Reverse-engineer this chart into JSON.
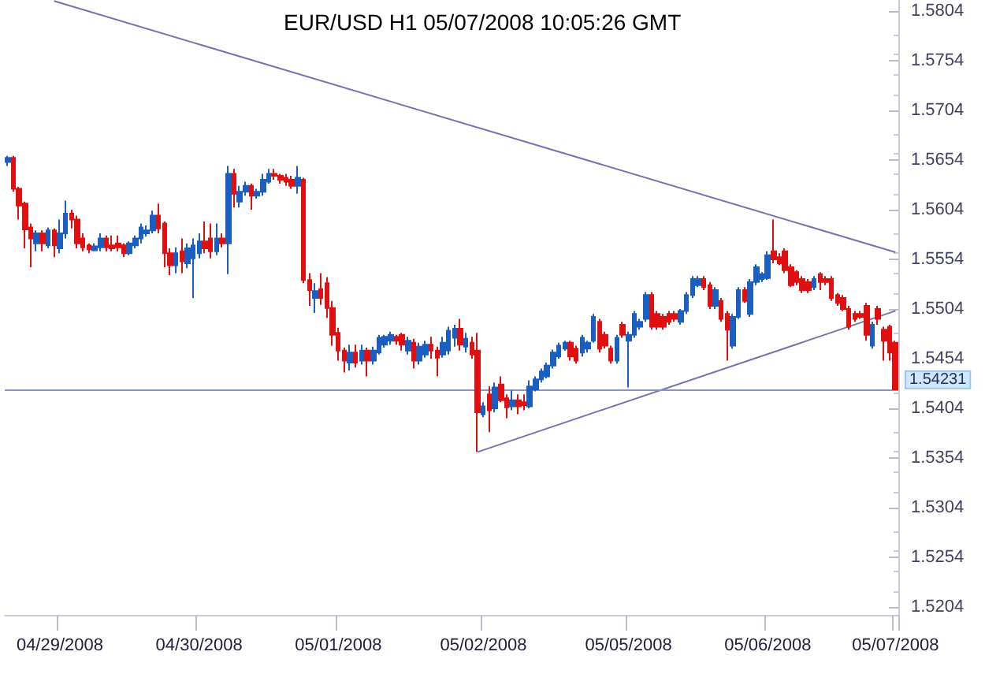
{
  "chart_data": {
    "type": "candlestick",
    "title": "EUR/USD H1 05/07/2008 10:05:26 GMT",
    "categories": [
      null,
      null,
      null,
      null,
      null,
      null,
      null,
      null,
      null,
      "04/29/2008",
      null,
      null,
      null,
      null,
      null,
      null,
      null,
      null,
      null,
      null,
      null,
      null,
      null,
      null,
      null,
      null,
      null,
      null,
      null,
      null,
      null,
      null,
      null,
      "04/30/2008",
      null,
      null,
      null,
      null,
      null,
      null,
      null,
      null,
      null,
      null,
      null,
      null,
      null,
      null,
      null,
      null,
      null,
      null,
      null,
      null,
      null,
      null,
      null,
      "05/01/2008",
      null,
      null,
      null,
      null,
      null,
      null,
      null,
      null,
      null,
      null,
      null,
      null,
      null,
      null,
      null,
      null,
      null,
      null,
      null,
      null,
      null,
      null,
      null,
      null,
      "05/02/2008",
      null,
      null,
      null,
      null,
      null,
      null,
      null,
      null,
      null,
      null,
      null,
      null,
      null,
      null,
      null,
      null,
      null,
      null,
      null,
      null,
      null,
      null,
      null,
      null,
      "05/05/2008",
      null,
      null,
      null,
      null,
      null,
      null,
      null,
      null,
      null,
      null,
      null,
      null,
      null,
      null,
      null,
      null,
      null,
      null,
      null,
      null,
      null,
      null,
      null,
      "05/06/2008",
      null,
      null,
      null,
      null,
      null,
      null,
      null,
      null,
      null,
      null,
      null,
      null,
      null,
      null,
      null,
      null,
      null,
      null,
      null,
      null,
      null,
      "05/07/2008"
    ],
    "colors": [
      "#1a5fc0",
      "#e01010",
      "#e01010",
      "#e01010",
      "#e01010",
      "#1a5fc0",
      "#e01010",
      "#1a5fc0",
      "#e01010",
      "#1a5fc0",
      "#1a5fc0",
      "#e01010",
      "#e01010",
      "#e01010",
      "#e01010",
      "#1a5fc0",
      "#1a5fc0",
      "#e01010",
      "#e01010",
      "#e01010",
      "#e01010",
      "#1a5fc0",
      "#1a5fc0",
      "#1a5fc0",
      "#1a5fc0",
      "#1a5fc0",
      "#e01010",
      "#e01010",
      "#e01010",
      "#1a5fc0",
      "#e01010",
      "#1a5fc0",
      "#1a5fc0",
      "#1a5fc0",
      "#e01010",
      "#e01010",
      "#1a5fc0",
      "#e01010",
      "#1a5fc0",
      "#e01010",
      "#1a5fc0",
      "#1a5fc0",
      "#e01010",
      "#1a5fc0",
      "#1a5fc0",
      "#1a5fc0",
      "#e01010",
      "#e01010",
      "#e01010",
      "#e01010",
      "#1a5fc0",
      "#e01010",
      "#e01010",
      "#1a5fc0",
      "#e01010",
      "#e01010",
      "#e01010",
      "#e01010",
      "#e01010",
      "#1a5fc0",
      "#e01010",
      "#1a5fc0",
      "#e01010",
      "#1a5fc0",
      "#1a5fc0",
      "#1a5fc0",
      "#1a5fc0",
      "#e01010",
      "#e01010",
      "#1a5fc0",
      "#e01010",
      "#1a5fc0",
      "#1a5fc0",
      "#e01010",
      "#e01010",
      "#1a5fc0",
      "#1a5fc0",
      "#1a5fc0",
      "#e01010",
      "#1a5fc0",
      "#e01010",
      "#e01010",
      "#1a5fc0",
      "#e01010",
      "#1a5fc0",
      "#e01010",
      "#e01010",
      "#1a5fc0",
      "#e01010",
      "#e01010",
      "#1a5fc0",
      "#1a5fc0",
      "#1a5fc0",
      "#1a5fc0",
      "#1a5fc0",
      "#1a5fc0",
      "#1a5fc0",
      "#e01010",
      "#e01010",
      "#1a5fc0",
      "#1a5fc0",
      "#1a5fc0",
      "#e01010",
      "#e01010",
      "#e01010",
      "#1a5fc0",
      "#e01010",
      "#1a5fc0",
      "#1a5fc0",
      "#1a5fc0",
      "#1a5fc0",
      "#e01010",
      "#e01010",
      "#e01010",
      "#e01010",
      "#e01010",
      "#1a5fc0",
      "#1a5fc0",
      "#1a5fc0",
      "#1a5fc0",
      "#e01010",
      "#e01010",
      "#1a5fc0",
      "#e01010",
      "#e01010",
      "#1a5fc0",
      "#1a5fc0",
      "#e01010",
      "#1a5fc0",
      "#1a5fc0",
      "#1a5fc0",
      "#1a5fc0",
      "#e01010",
      "#e01010",
      "#e01010",
      "#e01010",
      "#e01010",
      "#e01010",
      "#e01010",
      "#1a5fc0",
      "#e01010",
      "#e01010",
      "#e01010",
      "#e01010",
      "#e01010",
      "#e01010",
      "#e01010",
      "#e01010",
      "#e01010",
      "#1a5fc0",
      "#e01010",
      "#e01010",
      "#e01010",
      "#e01010"
    ],
    "ohlc": [
      [
        1.5652,
        1.5658,
        1.5648,
        1.5656
      ],
      [
        1.5656,
        1.5658,
        1.5622,
        1.5625
      ],
      [
        1.5625,
        1.5627,
        1.5594,
        1.5608
      ],
      [
        1.561,
        1.5612,
        1.5565,
        1.5584
      ],
      [
        1.5586,
        1.559,
        1.5546,
        1.5575
      ],
      [
        1.557,
        1.5583,
        1.5562,
        1.558
      ],
      [
        1.558,
        1.5583,
        1.5562,
        1.557
      ],
      [
        1.5568,
        1.5586,
        1.5565,
        1.5583
      ],
      [
        1.5583,
        1.5585,
        1.5556,
        1.5568
      ],
      [
        1.5565,
        1.5594,
        1.556,
        1.558
      ],
      [
        1.558,
        1.5613,
        1.5575,
        1.56
      ],
      [
        1.56,
        1.5604,
        1.5585,
        1.5594
      ],
      [
        1.5594,
        1.5598,
        1.5565,
        1.557
      ],
      [
        1.5575,
        1.558,
        1.5562,
        1.5566
      ],
      [
        1.5568,
        1.557,
        1.556,
        1.5564
      ],
      [
        1.5563,
        1.557,
        1.5562,
        1.5567
      ],
      [
        1.5566,
        1.558,
        1.5562,
        1.5575
      ],
      [
        1.5575,
        1.5578,
        1.5562,
        1.5566
      ],
      [
        1.5568,
        1.5578,
        1.5562,
        1.5565
      ],
      [
        1.557,
        1.5578,
        1.5562,
        1.5566
      ],
      [
        1.5568,
        1.557,
        1.5556,
        1.556
      ],
      [
        1.556,
        1.5572,
        1.5558,
        1.557
      ],
      [
        1.5568,
        1.5578,
        1.5565,
        1.5575
      ],
      [
        1.5575,
        1.559,
        1.557,
        1.5586
      ],
      [
        1.558,
        1.5588,
        1.5577,
        1.5583
      ],
      [
        1.5583,
        1.5603,
        1.558,
        1.5598
      ],
      [
        1.5598,
        1.561,
        1.558,
        1.5585
      ],
      [
        1.559,
        1.5592,
        1.5546,
        1.556
      ],
      [
        1.556,
        1.5565,
        1.5538,
        1.5548
      ],
      [
        1.5548,
        1.5566,
        1.554,
        1.556
      ],
      [
        1.5562,
        1.5575,
        1.554,
        1.5552
      ],
      [
        1.555,
        1.557,
        1.5545,
        1.5565
      ],
      [
        1.5555,
        1.5575,
        1.5515,
        1.5568
      ],
      [
        1.556,
        1.558,
        1.5555,
        1.5572
      ],
      [
        1.5572,
        1.5592,
        1.556,
        1.5565
      ],
      [
        1.5575,
        1.559,
        1.5555,
        1.5562
      ],
      [
        1.5562,
        1.559,
        1.5558,
        1.5575
      ],
      [
        1.5575,
        1.558,
        1.5566,
        1.557
      ],
      [
        1.557,
        1.5648,
        1.5539,
        1.564
      ],
      [
        1.564,
        1.5645,
        1.5606,
        1.562
      ],
      [
        1.5612,
        1.5628,
        1.5606,
        1.5622
      ],
      [
        1.5622,
        1.5632,
        1.5618,
        1.5628
      ],
      [
        1.5628,
        1.563,
        1.5604,
        1.5618
      ],
      [
        1.5618,
        1.5625,
        1.5615,
        1.5622
      ],
      [
        1.5622,
        1.564,
        1.5618,
        1.5634
      ],
      [
        1.5632,
        1.5645,
        1.563,
        1.564
      ],
      [
        1.564,
        1.5645,
        1.5634,
        1.5638
      ],
      [
        1.5638,
        1.564,
        1.563,
        1.5634
      ],
      [
        1.5636,
        1.564,
        1.5628,
        1.5632
      ],
      [
        1.5634,
        1.5638,
        1.5625,
        1.5628
      ],
      [
        1.5628,
        1.5648,
        1.562,
        1.5636
      ],
      [
        1.5634,
        1.5636,
        1.553,
        1.5533
      ],
      [
        1.5533,
        1.554,
        1.5507,
        1.5523
      ],
      [
        1.5515,
        1.553,
        1.55,
        1.5522
      ],
      [
        1.5524,
        1.554,
        1.5508,
        1.5515
      ],
      [
        1.553,
        1.5536,
        1.5495,
        1.5505
      ],
      [
        1.5505,
        1.5512,
        1.5467,
        1.5478
      ],
      [
        1.548,
        1.5485,
        1.5452,
        1.5462
      ],
      [
        1.5462,
        1.5465,
        1.544,
        1.5452
      ],
      [
        1.545,
        1.5468,
        1.5442,
        1.546
      ],
      [
        1.546,
        1.5468,
        1.5445,
        1.545
      ],
      [
        1.5452,
        1.5468,
        1.5448,
        1.5462
      ],
      [
        1.5462,
        1.5465,
        1.5436,
        1.5452
      ],
      [
        1.5452,
        1.5466,
        1.5448,
        1.5462
      ],
      [
        1.546,
        1.5478,
        1.5458,
        1.5475
      ],
      [
        1.5468,
        1.5478,
        1.5465,
        1.5476
      ],
      [
        1.5472,
        1.5481,
        1.5468,
        1.5478
      ],
      [
        1.5476,
        1.5478,
        1.5468,
        1.5472
      ],
      [
        1.5478,
        1.548,
        1.5462,
        1.5468
      ],
      [
        1.5462,
        1.5476,
        1.5458,
        1.5472
      ],
      [
        1.547,
        1.5474,
        1.5444,
        1.5452
      ],
      [
        1.5452,
        1.547,
        1.5448,
        1.5466
      ],
      [
        1.5458,
        1.5472,
        1.5455,
        1.5468
      ],
      [
        1.5468,
        1.5476,
        1.5454,
        1.5462
      ],
      [
        1.5462,
        1.5466,
        1.5436,
        1.5455
      ],
      [
        1.5458,
        1.5476,
        1.5455,
        1.547
      ],
      [
        1.5462,
        1.5486,
        1.5458,
        1.5482
      ],
      [
        1.5475,
        1.5488,
        1.5466,
        1.5484
      ],
      [
        1.5484,
        1.5494,
        1.5462,
        1.5468
      ],
      [
        1.5466,
        1.548,
        1.546,
        1.5474
      ],
      [
        1.547,
        1.5476,
        1.5454,
        1.5458
      ],
      [
        1.5462,
        1.548,
        1.536,
        1.54
      ],
      [
        1.5398,
        1.541,
        1.5395,
        1.5406
      ],
      [
        1.5418,
        1.5426,
        1.538,
        1.5402
      ],
      [
        1.5404,
        1.543,
        1.54,
        1.5425
      ],
      [
        1.5428,
        1.5436,
        1.541,
        1.5412
      ],
      [
        1.5414,
        1.5418,
        1.5394,
        1.5405
      ],
      [
        1.5406,
        1.5422,
        1.5402,
        1.5412
      ],
      [
        1.5412,
        1.5418,
        1.5398,
        1.5406
      ],
      [
        1.541,
        1.5418,
        1.5402,
        1.5407
      ],
      [
        1.5406,
        1.5432,
        1.5404,
        1.5426
      ],
      [
        1.5423,
        1.5436,
        1.5421,
        1.5433
      ],
      [
        1.5433,
        1.5444,
        1.543,
        1.5441
      ],
      [
        1.5436,
        1.545,
        1.5434,
        1.5447
      ],
      [
        1.5447,
        1.5463,
        1.5444,
        1.546
      ],
      [
        1.5456,
        1.547,
        1.5454,
        1.5467
      ],
      [
        1.5464,
        1.5472,
        1.5462,
        1.547
      ],
      [
        1.547,
        1.5472,
        1.5452,
        1.5456
      ],
      [
        1.5464,
        1.5467,
        1.5449,
        1.5452
      ],
      [
        1.546,
        1.5478,
        1.5456,
        1.5475
      ],
      [
        1.5464,
        1.5472,
        1.546,
        1.547
      ],
      [
        1.5472,
        1.5499,
        1.547,
        1.5496
      ],
      [
        1.5491,
        1.5494,
        1.546,
        1.5464
      ],
      [
        1.5478,
        1.5481,
        1.5464,
        1.5467
      ],
      [
        1.5464,
        1.5467,
        1.5449,
        1.5452
      ],
      [
        1.5452,
        1.5478,
        1.5449,
        1.5475
      ],
      [
        1.5488,
        1.5491,
        1.5475,
        1.5478
      ],
      [
        1.5472,
        1.5481,
        1.5425,
        1.5478
      ],
      [
        1.5478,
        1.5502,
        1.5475,
        1.5499
      ],
      [
        1.5486,
        1.5494,
        1.5483,
        1.5491
      ],
      [
        1.5494,
        1.5521,
        1.5491,
        1.5518
      ],
      [
        1.5518,
        1.5521,
        1.5483,
        1.5486
      ],
      [
        1.5499,
        1.5502,
        1.5483,
        1.5486
      ],
      [
        1.5496,
        1.5499,
        1.5483,
        1.5486
      ],
      [
        1.5499,
        1.5502,
        1.5488,
        1.5491
      ],
      [
        1.5499,
        1.5502,
        1.5491,
        1.5494
      ],
      [
        1.5491,
        1.5504,
        1.5488,
        1.5502
      ],
      [
        1.5502,
        1.5521,
        1.5499,
        1.5518
      ],
      [
        1.5518,
        1.5537,
        1.5515,
        1.5534
      ],
      [
        1.5528,
        1.5537,
        1.5526,
        1.5534
      ],
      [
        1.5534,
        1.5537,
        1.5523,
        1.5526
      ],
      [
        1.5528,
        1.5531,
        1.5504,
        1.5507
      ],
      [
        1.5507,
        1.5526,
        1.5504,
        1.5523
      ],
      [
        1.5512,
        1.5515,
        1.5491,
        1.5494
      ],
      [
        1.5499,
        1.5502,
        1.5452,
        1.5483
      ],
      [
        1.5467,
        1.5499,
        1.5464,
        1.5496
      ],
      [
        1.5496,
        1.5526,
        1.5494,
        1.5523
      ],
      [
        1.5523,
        1.5526,
        1.551,
        1.5512
      ],
      [
        1.5499,
        1.5534,
        1.5496,
        1.5531
      ],
      [
        1.5531,
        1.5549,
        1.5528,
        1.5546
      ],
      [
        1.5534,
        1.5541,
        1.5531,
        1.5539
      ],
      [
        1.5535,
        1.5562,
        1.5533,
        1.5558
      ],
      [
        1.5562,
        1.5594,
        1.555,
        1.5554
      ],
      [
        1.5556,
        1.556,
        1.5548,
        1.555
      ],
      [
        1.5562,
        1.5565,
        1.554,
        1.5543
      ],
      [
        1.5546,
        1.5549,
        1.5526,
        1.5528
      ],
      [
        1.5541,
        1.5543,
        1.5528,
        1.5531
      ],
      [
        1.5534,
        1.5537,
        1.552,
        1.5523
      ],
      [
        1.5531,
        1.5534,
        1.552,
        1.5523
      ],
      [
        1.5526,
        1.5537,
        1.5523,
        1.5534
      ],
      [
        1.5539,
        1.5541,
        1.5523,
        1.5531
      ],
      [
        1.5534,
        1.5537,
        1.5528,
        1.5531
      ],
      [
        1.5534,
        1.5537,
        1.5512,
        1.5515
      ],
      [
        1.5518,
        1.552,
        1.5507,
        1.551
      ],
      [
        1.5515,
        1.5518,
        1.5502,
        1.5504
      ],
      [
        1.5504,
        1.5507,
        1.5483,
        1.5486
      ],
      [
        1.5499,
        1.5502,
        1.5491,
        1.5494
      ],
      [
        1.5499,
        1.5502,
        1.5494,
        1.5496
      ],
      [
        1.5507,
        1.551,
        1.5472,
        1.5478
      ],
      [
        1.5467,
        1.5491,
        1.5464,
        1.5488
      ],
      [
        1.5504,
        1.5507,
        1.5488,
        1.5494
      ],
      [
        1.5483,
        1.5486,
        1.5452,
        1.5472
      ],
      [
        1.5486,
        1.5488,
        1.5452,
        1.546
      ],
      [
        1.547,
        1.5472,
        1.5423,
        1.5423
      ]
    ],
    "series": [
      {
        "type": "line",
        "color": "#7474b4",
        "values": [
          null,
          null,
          null,
          null,
          null,
          null,
          null,
          null,
          1.5814,
          null,
          null,
          null,
          null,
          null,
          null,
          null,
          null,
          null,
          null,
          null,
          null,
          null,
          null,
          null,
          null,
          null,
          null,
          null,
          null,
          null,
          null,
          null,
          null,
          null,
          null,
          null,
          null,
          null,
          null,
          null,
          null,
          null,
          null,
          null,
          null,
          null,
          null,
          null,
          null,
          null,
          null,
          null,
          null,
          null,
          null,
          null,
          null,
          null,
          null,
          null,
          null,
          null,
          null,
          null,
          null,
          null,
          null,
          null,
          null,
          null,
          null,
          null,
          null,
          null,
          null,
          null,
          null,
          null,
          null,
          null,
          null,
          null,
          null,
          null,
          null,
          null,
          null,
          null,
          null,
          null,
          null,
          null,
          null,
          null,
          null,
          null,
          null,
          null,
          null,
          null,
          null,
          null,
          null,
          null,
          null,
          null,
          null,
          null,
          null,
          null,
          null,
          null,
          null,
          null,
          null,
          null,
          null,
          null,
          null,
          null,
          null,
          null,
          null,
          null,
          null,
          null,
          null,
          null,
          null,
          null,
          null,
          null,
          null,
          null,
          null,
          null,
          null,
          null,
          null,
          null,
          null,
          null,
          null,
          null,
          null,
          null,
          null,
          null,
          null,
          null,
          null,
          null,
          null,
          1.5561
        ]
      },
      {
        "type": "line",
        "color": "#7474b4",
        "values": [
          null,
          null,
          null,
          null,
          null,
          null,
          null,
          null,
          null,
          null,
          null,
          null,
          null,
          null,
          null,
          null,
          null,
          null,
          null,
          null,
          null,
          null,
          null,
          null,
          null,
          null,
          null,
          null,
          null,
          null,
          null,
          null,
          null,
          null,
          null,
          null,
          null,
          null,
          null,
          null,
          null,
          null,
          null,
          null,
          null,
          null,
          null,
          null,
          null,
          null,
          null,
          null,
          null,
          null,
          null,
          null,
          null,
          null,
          null,
          null,
          null,
          null,
          null,
          null,
          null,
          null,
          null,
          null,
          null,
          null,
          null,
          null,
          null,
          null,
          null,
          null,
          null,
          null,
          null,
          null,
          null,
          1.536,
          null,
          null,
          null,
          null,
          null,
          null,
          null,
          null,
          null,
          null,
          null,
          null,
          null,
          null,
          null,
          null,
          null,
          null,
          null,
          null,
          null,
          null,
          null,
          null,
          null,
          null,
          null,
          null,
          null,
          null,
          null,
          null,
          null,
          null,
          null,
          null,
          null,
          null,
          null,
          null,
          null,
          null,
          null,
          null,
          null,
          null,
          null,
          null,
          null,
          null,
          null,
          null,
          null,
          null,
          null,
          null,
          null,
          null,
          null,
          null,
          null,
          null,
          null,
          null,
          null,
          null,
          null,
          null,
          null,
          null,
          null,
          1.5502
        ]
      }
    ],
    "ref_lines": [
      {
        "axis": "y",
        "value": 1.54231,
        "label": "1.54231",
        "color": "#8a94c4"
      }
    ],
    "ylim": [
      1.5196,
      1.5815
    ],
    "yticks": [
      1.5204,
      1.5254,
      1.5304,
      1.5354,
      1.5404,
      1.5454,
      1.5504,
      1.5554,
      1.5604,
      1.5654,
      1.5704,
      1.5754,
      1.5804
    ],
    "grid": false
  }
}
